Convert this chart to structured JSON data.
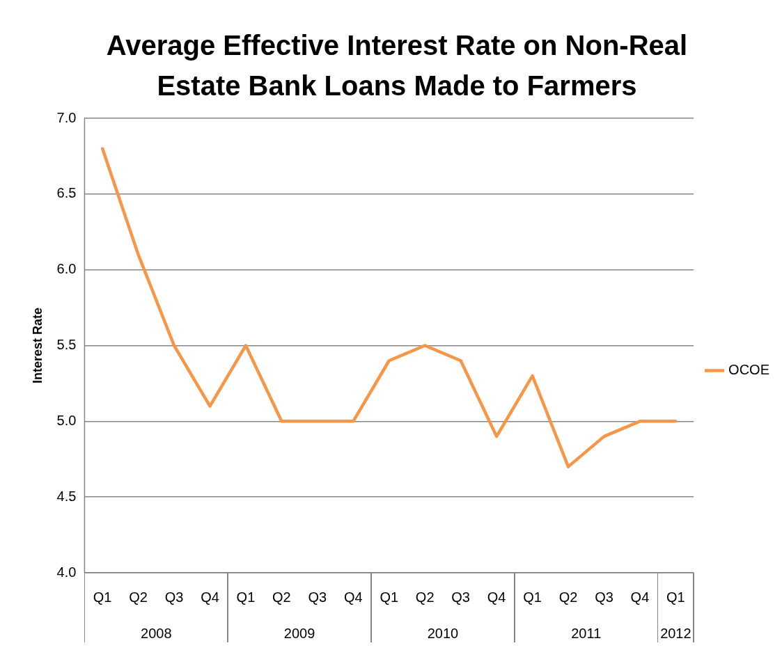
{
  "chart_data": {
    "type": "line",
    "title": "Average Effective Interest Rate on Non-Real Estate Bank Loans Made to Farmers",
    "ylabel": "Interest Rate",
    "categories": [
      "Q1",
      "Q2",
      "Q3",
      "Q4",
      "Q1",
      "Q2",
      "Q3",
      "Q4",
      "Q1",
      "Q2",
      "Q3",
      "Q4",
      "Q1",
      "Q2",
      "Q3",
      "Q4",
      "Q1"
    ],
    "series": [
      {
        "name": "OCOE",
        "color": "#f79646",
        "values": [
          6.8,
          6.1,
          5.5,
          5.1,
          5.5,
          5.0,
          5.0,
          5.0,
          5.4,
          5.5,
          5.4,
          4.9,
          5.3,
          4.7,
          4.9,
          5.0,
          5.0
        ]
      }
    ],
    "annotations": [
      "2008",
      "2009",
      "2010",
      "2011",
      "2012"
    ],
    "ylim": [
      4,
      7
    ],
    "yticks": [
      {
        "value": 4,
        "label": "4.0"
      },
      {
        "value": 4.5,
        "label": "4.5"
      },
      {
        "value": 5,
        "label": "5.0"
      },
      {
        "value": 5.5,
        "label": "5.5"
      },
      {
        "value": 6,
        "label": "6.0"
      },
      {
        "value": 6.5,
        "label": "6.5"
      },
      {
        "value": 7,
        "label": "7.0"
      }
    ],
    "grid": "y",
    "legend": "right",
    "marker": "none",
    "line_style": "solid"
  }
}
